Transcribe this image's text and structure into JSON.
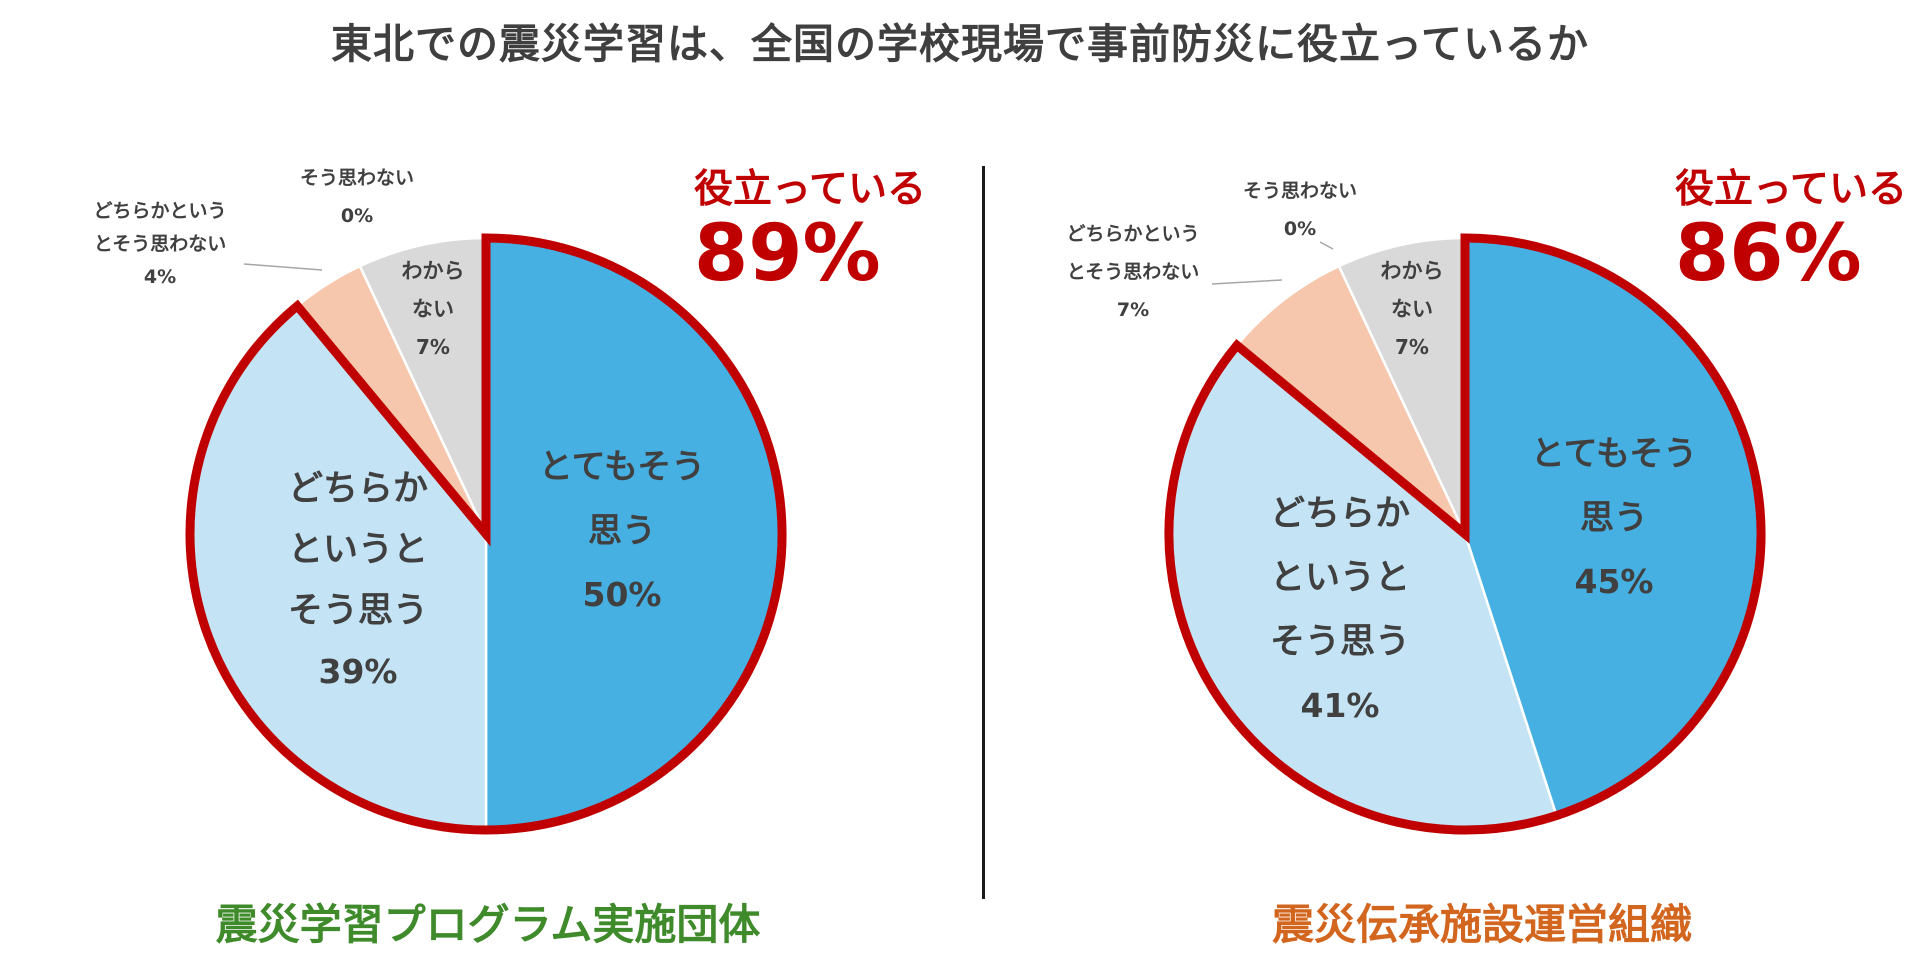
{
  "title": "東北での震災学習は、全国の学校現場で事前防災に役立っているか",
  "colors": {
    "very_much": "#47b0e2",
    "somewhat": "#c4e4f5",
    "somewhat_not": "#f6c7ac",
    "not_at_all": "#ffffff",
    "dont_know": "#d9d9d9",
    "highlight": "#c00000",
    "footer_left": "#3f8a2a",
    "footer_right": "#d3661f"
  },
  "chart_data": [
    {
      "type": "pie",
      "title": "震災学習プログラム実施団体",
      "callout": {
        "label": "役立っている",
        "value": "89%"
      },
      "slices": [
        {
          "label": [
            "とてもそう",
            "思う"
          ],
          "value": 50,
          "display": "50%"
        },
        {
          "label": [
            "どちらか",
            "というと",
            "そう思う"
          ],
          "value": 39,
          "display": "39%"
        },
        {
          "label": [
            "どちらかという",
            "とそう思わない"
          ],
          "value": 4,
          "display": "4%"
        },
        {
          "label": [
            "そう思わない"
          ],
          "value": 0,
          "display": "0%"
        },
        {
          "label": [
            "わから",
            "ない"
          ],
          "value": 7,
          "display": "7%"
        }
      ]
    },
    {
      "type": "pie",
      "title": "震災伝承施設運営組織",
      "callout": {
        "label": "役立っている",
        "value": "86%"
      },
      "slices": [
        {
          "label": [
            "とてもそう",
            "思う"
          ],
          "value": 45,
          "display": "45%"
        },
        {
          "label": [
            "どちらか",
            "というと",
            "そう思う"
          ],
          "value": 41,
          "display": "41%"
        },
        {
          "label": [
            "どちらかという",
            "とそう思わない"
          ],
          "value": 7,
          "display": "7%"
        },
        {
          "label": [
            "そう思わない"
          ],
          "value": 0,
          "display": "0%"
        },
        {
          "label": [
            "わから",
            "ない"
          ],
          "value": 7,
          "display": "7%"
        }
      ]
    }
  ]
}
